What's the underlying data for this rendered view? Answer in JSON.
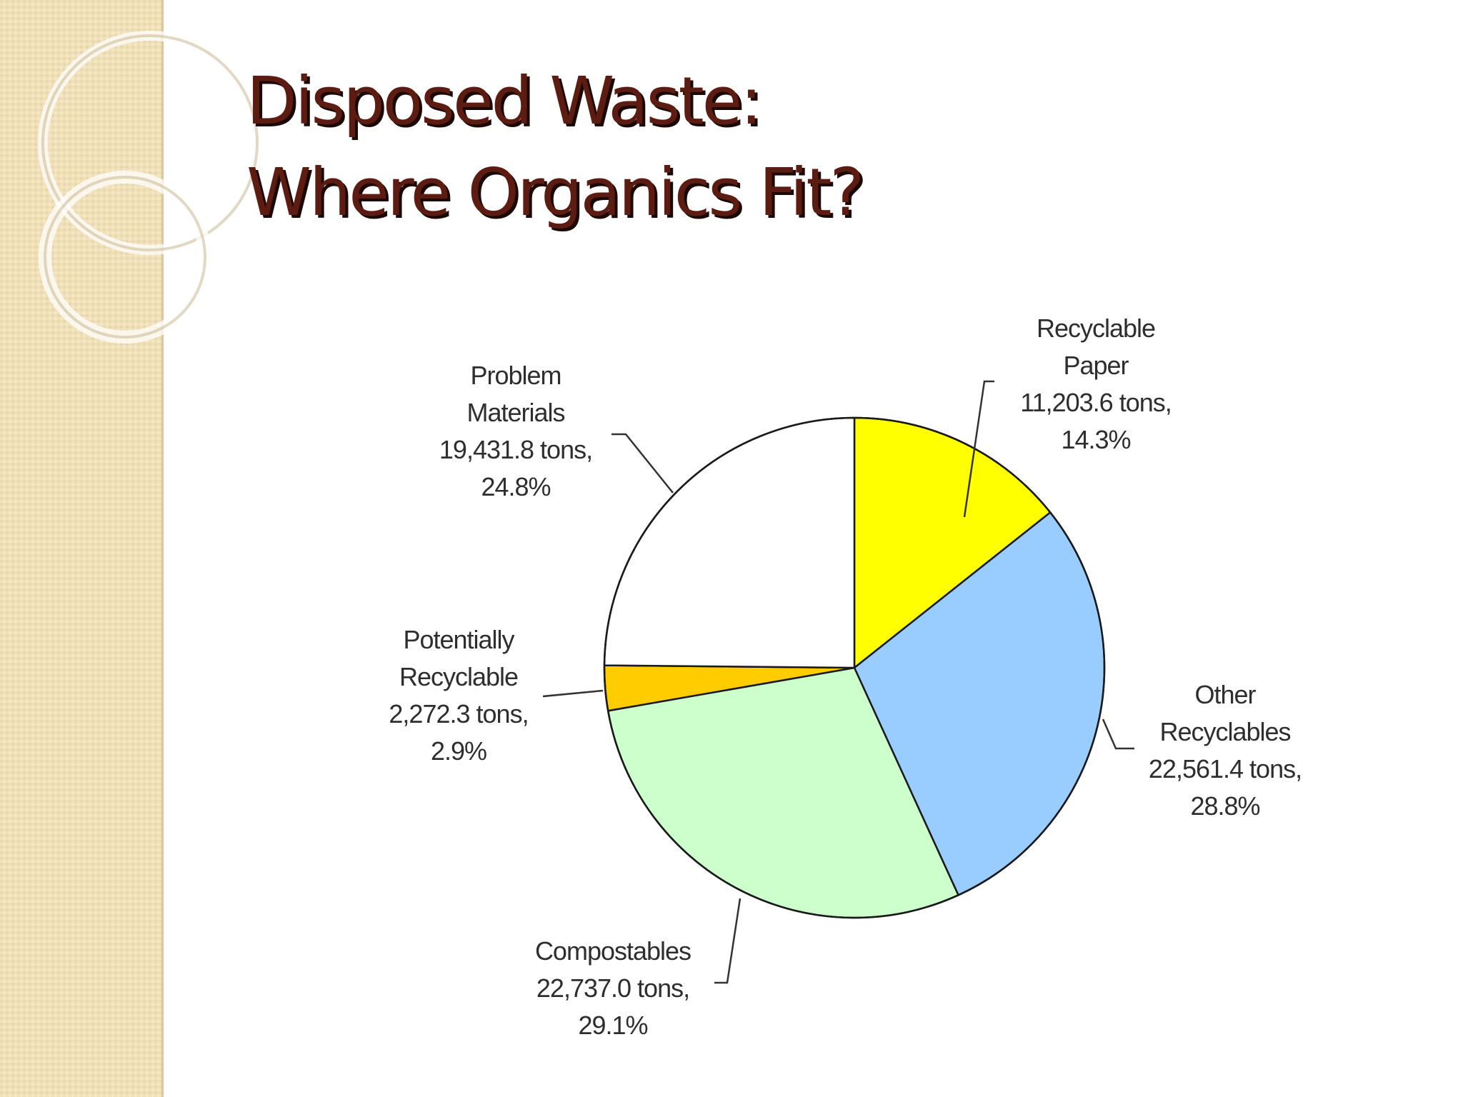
{
  "slide": {
    "title_line1": "Disposed Waste:",
    "title_line2": "Where Organics Fit?"
  },
  "colors": {
    "title": "#5c1c11",
    "title_shadow": "#1a0906",
    "sidebar": "#efe0b9"
  },
  "chart_data": {
    "type": "pie",
    "title": "",
    "start_angle_deg": 0,
    "direction": "clockwise",
    "slices": [
      {
        "category": "Recyclable Paper",
        "tons": 11203.6,
        "percent": 14.3,
        "color": "#ffff00",
        "label_lines": [
          "Recyclable",
          "Paper",
          "11,203.6 tons,",
          "14.3%"
        ]
      },
      {
        "category": "Other Recyclables",
        "tons": 22561.4,
        "percent": 28.8,
        "color": "#99ccff",
        "label_lines": [
          "Other",
          "Recyclables",
          "22,561.4 tons,",
          "28.8%"
        ]
      },
      {
        "category": "Compostables",
        "tons": 22737.0,
        "percent": 29.1,
        "color": "#ccffcc",
        "label_lines": [
          "Compostables",
          "22,737.0 tons,",
          "29.1%"
        ]
      },
      {
        "category": "Potentially Recyclable",
        "tons": 2272.3,
        "percent": 2.9,
        "color": "#ffcc00",
        "label_lines": [
          "Potentially",
          "Recyclable",
          "2,272.3 tons,",
          "2.9%"
        ]
      },
      {
        "category": "Problem Materials",
        "tons": 19431.8,
        "percent": 24.8,
        "color": "#ffffff",
        "label_lines": [
          "Problem",
          "Materials",
          "19,431.8 tons,",
          "24.8%"
        ]
      }
    ]
  }
}
